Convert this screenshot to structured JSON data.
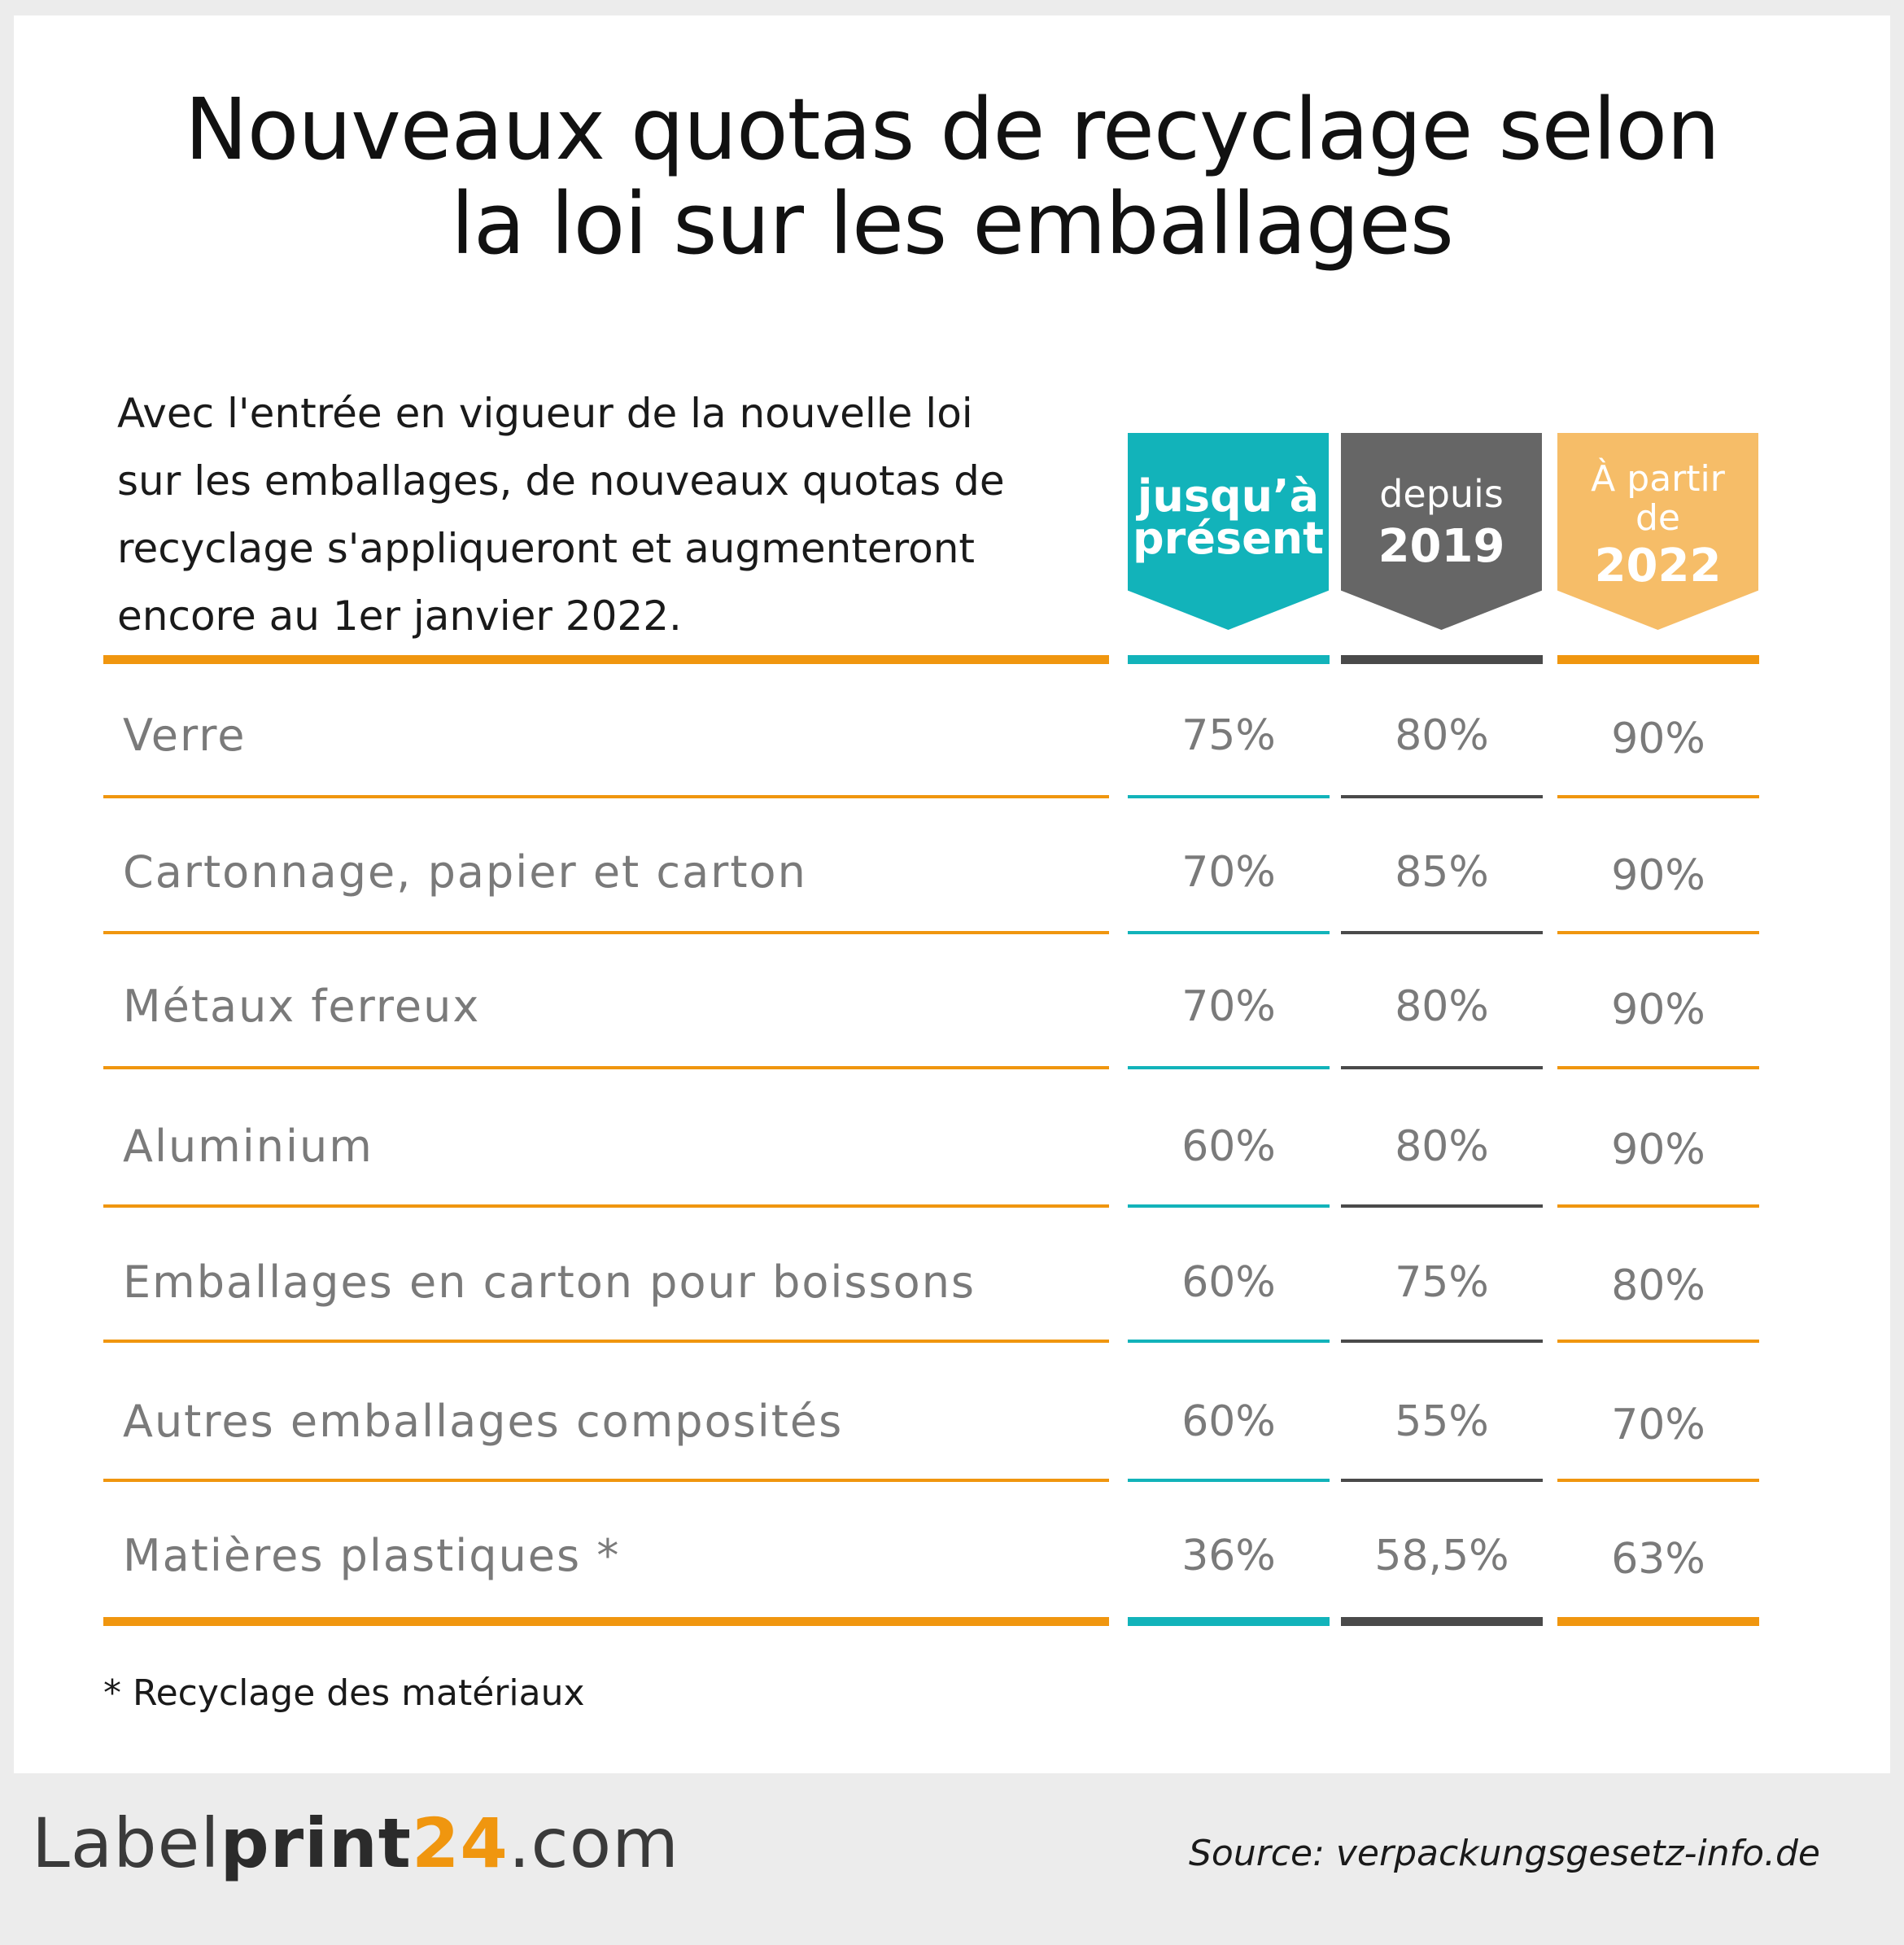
{
  "title": {
    "line1": "Nouveaux quotas de recyclage selon",
    "line2": "la loi sur les emballages"
  },
  "intro": {
    "lines": [
      "Avec l'entrée en vigueur de la nouvelle loi",
      "sur les emballages, de nouveaux quotas de",
      "recyclage s'appliqueront et augmenteront",
      "encore au 1er janvier 2022."
    ]
  },
  "columns": [
    {
      "lines": [
        "jusqu’à",
        "présent"
      ],
      "color": "#12b3ba"
    },
    {
      "lines": [
        "depuis",
        "2019"
      ],
      "color": "#666666"
    },
    {
      "lines": [
        "À partir",
        "de",
        "2022"
      ],
      "color": "#f6bd68"
    }
  ],
  "rows": [
    {
      "label": "Verre",
      "values": [
        "75%",
        "80%",
        "90%"
      ]
    },
    {
      "label": "Cartonnage, papier et carton",
      "values": [
        "70%",
        "85%",
        "90%"
      ]
    },
    {
      "label": "Métaux ferreux",
      "values": [
        "70%",
        "80%",
        "90%"
      ]
    },
    {
      "label": "Aluminium",
      "values": [
        "60%",
        "80%",
        "90%"
      ]
    },
    {
      "label": "Emballages en carton pour boissons",
      "values": [
        "60%",
        "75%",
        "80%"
      ]
    },
    {
      "label": "Autres emballages composités",
      "values": [
        "60%",
        "55%",
        "70%"
      ]
    },
    {
      "label": "Matières plastiques *",
      "values": [
        "36%",
        "58,5%",
        "63%"
      ]
    }
  ],
  "footnote": "* Recyclage des matériaux",
  "footer": {
    "logo_part1": "Label",
    "logo_part2": "print",
    "logo_part3": "24",
    "logo_part4": ".com",
    "source": "Source: verpackungsgesetz-info.de"
  },
  "colors": {
    "accent_orange": "#f0960f",
    "teal": "#12b3ba",
    "grey": "#666666",
    "light_orange": "#f6bd68"
  }
}
